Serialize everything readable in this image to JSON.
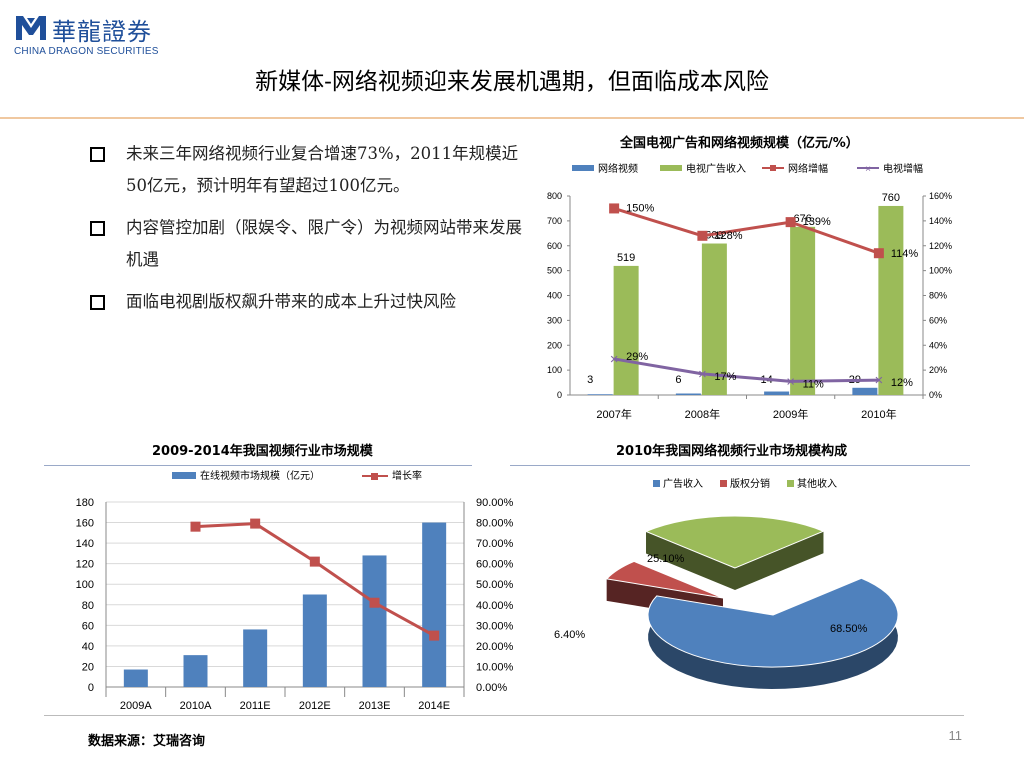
{
  "logo": {
    "cn": "華龍證券",
    "en": "CHINA DRAGON SECURITIES"
  },
  "page_title": "新媒体-网络视频迎来发展机遇期，但面临成本风险",
  "bullets": [
    "未来三年网络视频行业复合增速73%，2011年规模近50亿元，预计明年有望超过100亿元。",
    "内容管控加剧（限娱令、限广令）为视频网站带来发展机遇",
    "面临电视剧版权飙升带来的成本上升过快风险"
  ],
  "colors": {
    "blue": "#4f81bd",
    "green": "#9bbb59",
    "red": "#c0504d",
    "purple": "#8064a2"
  },
  "chart_data": [
    {
      "type": "bar",
      "title": "全国电视广告和网络视频规模（亿元/%）",
      "categories": [
        "2007年",
        "2008年",
        "2009年",
        "2010年"
      ],
      "ylim": [
        0,
        800
      ],
      "yticks": [
        "0",
        "100",
        "200",
        "300",
        "400",
        "500",
        "600",
        "700",
        "800"
      ],
      "y2lim": [
        0,
        160
      ],
      "y2ticks": [
        "0%",
        "20%",
        "40%",
        "60%",
        "80%",
        "100%",
        "120%",
        "140%",
        "160%"
      ],
      "series": [
        {
          "name": "网络视频",
          "kind": "bar",
          "axis": "left",
          "values": [
            3,
            6,
            14,
            29
          ],
          "labels": [
            "3",
            "6",
            "14",
            "29"
          ]
        },
        {
          "name": "电视广告收入",
          "kind": "bar",
          "axis": "left",
          "values": [
            519,
            609,
            676,
            760
          ],
          "labels": [
            "519",
            "609",
            "676",
            "760"
          ]
        },
        {
          "name": "网络增幅",
          "kind": "line",
          "axis": "right",
          "values": [
            150,
            128,
            139,
            114
          ],
          "labels": [
            "150%",
            "128%",
            "139%",
            "114%"
          ]
        },
        {
          "name": "电视增幅",
          "kind": "line",
          "axis": "right",
          "values": [
            29,
            17,
            11,
            12
          ],
          "labels": [
            "29%",
            "17%",
            "11%",
            "12%"
          ]
        }
      ],
      "legend": "top"
    },
    {
      "type": "bar",
      "title": "2009-2014年我国视频行业市场规模",
      "categories": [
        "2009A",
        "2010A",
        "2011E",
        "2012E",
        "2013E",
        "2014E"
      ],
      "ylim": [
        0,
        180
      ],
      "yticks": [
        "0",
        "20",
        "40",
        "60",
        "80",
        "100",
        "120",
        "140",
        "160",
        "180"
      ],
      "y2lim": [
        0,
        90
      ],
      "y2ticks": [
        "0.00%",
        "10.00%",
        "20.00%",
        "30.00%",
        "40.00%",
        "50.00%",
        "60.00%",
        "70.00%",
        "80.00%",
        "90.00%"
      ],
      "series": [
        {
          "name": "在线视频市场规模（亿元）",
          "kind": "bar",
          "axis": "left",
          "values": [
            17,
            31,
            56,
            90,
            128,
            160
          ]
        },
        {
          "name": "增长率",
          "kind": "line",
          "axis": "right",
          "values": [
            null,
            78,
            79.5,
            61,
            41,
            25
          ]
        }
      ],
      "legend": "top",
      "grid": true
    },
    {
      "type": "pie",
      "title": "2010年我国网络视频行业市场规模构成",
      "categories": [
        "广告收入",
        "版权分销",
        "其他收入"
      ],
      "values": [
        68.5,
        6.4,
        25.1
      ],
      "labels": [
        "68.50%",
        "6.40%",
        "25.10%"
      ],
      "legend": "top"
    }
  ],
  "source": "数据来源：艾瑞咨询",
  "page_number": "11"
}
